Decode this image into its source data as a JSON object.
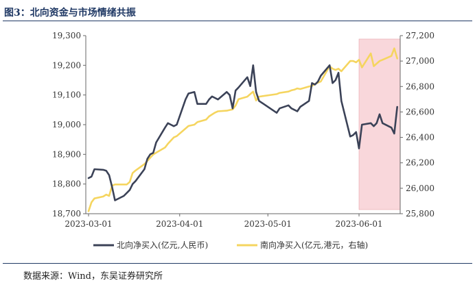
{
  "header": {
    "title": "图3：北向资金与市场情绪共振"
  },
  "footer": {
    "source": "数据来源：Wind，东吴证券研究所"
  },
  "colors": {
    "north": "#3b4257",
    "south": "#f5d55f",
    "highlight": "#f9d7db"
  },
  "chart_data": {
    "type": "line",
    "x_start": "2023-03-01",
    "x_end": "2023-06-15",
    "x_ticks": [
      "2023-03-01",
      "2023-04-01",
      "2023-05-01",
      "2023-06-01"
    ],
    "left_axis": {
      "ylim": [
        18700,
        19300
      ],
      "ticks": [
        "18,700",
        "18,800",
        "18,900",
        "19,000",
        "19,100",
        "19,200",
        "19,300"
      ]
    },
    "right_axis": {
      "ylim": [
        25800,
        27200
      ],
      "ticks": [
        "25,800",
        "26,000",
        "26,200",
        "26,400",
        "26,600",
        "26,800",
        "27,000",
        "27,200"
      ]
    },
    "highlight_range": [
      "2023-06-01",
      "2023-06-15"
    ],
    "grid": false,
    "legend_position": "bottom",
    "series": [
      {
        "name": "北向净买入(亿元,人民币)",
        "axis": "left",
        "color": "#3b4257",
        "points": [
          [
            "2023-03-01",
            18820
          ],
          [
            "2023-03-02",
            18825
          ],
          [
            "2023-03-03",
            18850
          ],
          [
            "2023-03-06",
            18848
          ],
          [
            "2023-03-07",
            18845
          ],
          [
            "2023-03-08",
            18830
          ],
          [
            "2023-03-09",
            18790
          ],
          [
            "2023-03-10",
            18745
          ],
          [
            "2023-03-13",
            18760
          ],
          [
            "2023-03-14",
            18770
          ],
          [
            "2023-03-15",
            18780
          ],
          [
            "2023-03-16",
            18800
          ],
          [
            "2023-03-17",
            18810
          ],
          [
            "2023-03-20",
            18850
          ],
          [
            "2023-03-21",
            18885
          ],
          [
            "2023-03-22",
            18900
          ],
          [
            "2023-03-23",
            18905
          ],
          [
            "2023-03-24",
            18940
          ],
          [
            "2023-03-27",
            18990
          ],
          [
            "2023-03-28",
            19005
          ],
          [
            "2023-03-29",
            19000
          ],
          [
            "2023-03-30",
            18995
          ],
          [
            "2023-03-31",
            19000
          ],
          [
            "2023-04-03",
            19085
          ],
          [
            "2023-04-04",
            19105
          ],
          [
            "2023-04-06",
            19110
          ],
          [
            "2023-04-07",
            19070
          ],
          [
            "2023-04-10",
            19070
          ],
          [
            "2023-04-11",
            19085
          ],
          [
            "2023-04-12",
            19095
          ],
          [
            "2023-04-13",
            19090
          ],
          [
            "2023-04-14",
            19085
          ],
          [
            "2023-04-17",
            19110
          ],
          [
            "2023-04-18",
            19100
          ],
          [
            "2023-04-19",
            19055
          ],
          [
            "2023-04-20",
            19115
          ],
          [
            "2023-04-21",
            19125
          ],
          [
            "2023-04-24",
            19160
          ],
          [
            "2023-04-25",
            19130
          ],
          [
            "2023-04-26",
            19200
          ],
          [
            "2023-04-27",
            19110
          ],
          [
            "2023-04-28",
            19080
          ],
          [
            "2023-05-04",
            19040
          ],
          [
            "2023-05-05",
            19055
          ],
          [
            "2023-05-08",
            19065
          ],
          [
            "2023-05-09",
            19055
          ],
          [
            "2023-05-10",
            19050
          ],
          [
            "2023-05-11",
            19045
          ],
          [
            "2023-05-12",
            19060
          ],
          [
            "2023-05-15",
            19080
          ],
          [
            "2023-05-16",
            19140
          ],
          [
            "2023-05-17",
            19135
          ],
          [
            "2023-05-18",
            19145
          ],
          [
            "2023-05-19",
            19165
          ],
          [
            "2023-05-22",
            19200
          ],
          [
            "2023-05-23",
            19140
          ],
          [
            "2023-05-24",
            19150
          ],
          [
            "2023-05-25",
            19175
          ],
          [
            "2023-05-26",
            19080
          ],
          [
            "2023-05-29",
            18960
          ],
          [
            "2023-05-30",
            18965
          ],
          [
            "2023-05-31",
            18975
          ],
          [
            "2023-06-01",
            18920
          ],
          [
            "2023-06-02",
            19000
          ],
          [
            "2023-06-05",
            19005
          ],
          [
            "2023-06-06",
            18995
          ],
          [
            "2023-06-07",
            19005
          ],
          [
            "2023-06-08",
            19035
          ],
          [
            "2023-06-09",
            19005
          ],
          [
            "2023-06-12",
            18990
          ],
          [
            "2023-06-13",
            18970
          ],
          [
            "2023-06-14",
            19060
          ]
        ]
      },
      {
        "name": "南向净买入(亿元,港元，右轴)",
        "axis": "right",
        "color": "#f5d55f",
        "points": [
          [
            "2023-03-01",
            25820
          ],
          [
            "2023-03-02",
            25890
          ],
          [
            "2023-03-03",
            25920
          ],
          [
            "2023-03-06",
            25935
          ],
          [
            "2023-03-07",
            25950
          ],
          [
            "2023-03-08",
            25940
          ],
          [
            "2023-03-09",
            26020
          ],
          [
            "2023-03-10",
            26030
          ],
          [
            "2023-03-13",
            26030
          ],
          [
            "2023-03-14",
            26030
          ],
          [
            "2023-03-15",
            26050
          ],
          [
            "2023-03-16",
            26120
          ],
          [
            "2023-03-17",
            26140
          ],
          [
            "2023-03-20",
            26190
          ],
          [
            "2023-03-21",
            26215
          ],
          [
            "2023-03-22",
            26240
          ],
          [
            "2023-03-23",
            26265
          ],
          [
            "2023-03-24",
            26280
          ],
          [
            "2023-03-27",
            26320
          ],
          [
            "2023-03-28",
            26350
          ],
          [
            "2023-03-29",
            26375
          ],
          [
            "2023-03-30",
            26400
          ],
          [
            "2023-03-31",
            26410
          ],
          [
            "2023-04-03",
            26470
          ],
          [
            "2023-04-04",
            26490
          ],
          [
            "2023-04-06",
            26500
          ],
          [
            "2023-04-07",
            26520
          ],
          [
            "2023-04-10",
            26540
          ],
          [
            "2023-04-11",
            26565
          ],
          [
            "2023-04-12",
            26580
          ],
          [
            "2023-04-13",
            26595
          ],
          [
            "2023-04-14",
            26605
          ],
          [
            "2023-04-17",
            26610
          ],
          [
            "2023-04-18",
            26615
          ],
          [
            "2023-04-19",
            26620
          ],
          [
            "2023-04-20",
            26650
          ],
          [
            "2023-04-21",
            26700
          ],
          [
            "2023-04-24",
            26720
          ],
          [
            "2023-04-25",
            26740
          ],
          [
            "2023-04-26",
            26760
          ],
          [
            "2023-04-27",
            26690
          ],
          [
            "2023-04-28",
            26720
          ],
          [
            "2023-05-04",
            26740
          ],
          [
            "2023-05-05",
            26750
          ],
          [
            "2023-05-08",
            26760
          ],
          [
            "2023-05-09",
            26770
          ],
          [
            "2023-05-10",
            26775
          ],
          [
            "2023-05-11",
            26785
          ],
          [
            "2023-05-12",
            26780
          ],
          [
            "2023-05-15",
            26800
          ],
          [
            "2023-05-16",
            26805
          ],
          [
            "2023-05-17",
            26820
          ],
          [
            "2023-05-18",
            26830
          ],
          [
            "2023-05-19",
            26840
          ],
          [
            "2023-05-22",
            26960
          ],
          [
            "2023-05-23",
            26940
          ],
          [
            "2023-05-24",
            26930
          ],
          [
            "2023-05-25",
            26940
          ],
          [
            "2023-05-26",
            26920
          ],
          [
            "2023-05-29",
            27000
          ],
          [
            "2023-05-30",
            27000
          ],
          [
            "2023-05-31",
            26990
          ],
          [
            "2023-06-01",
            27010
          ],
          [
            "2023-06-02",
            26950
          ],
          [
            "2023-06-05",
            27060
          ],
          [
            "2023-06-06",
            26960
          ],
          [
            "2023-06-07",
            26980
          ],
          [
            "2023-06-08",
            27000
          ],
          [
            "2023-06-09",
            27010
          ],
          [
            "2023-06-12",
            27040
          ],
          [
            "2023-06-13",
            27100
          ],
          [
            "2023-06-14",
            27020
          ]
        ]
      }
    ]
  }
}
